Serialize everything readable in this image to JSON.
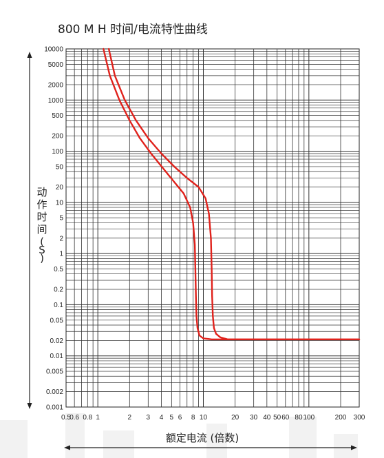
{
  "chart_data": {
    "type": "line",
    "title": "800 M H  时间/电流特性曲线",
    "xlabel": "额定电流 (倍数)",
    "ylabel": "动作时间 (S)",
    "x_scale": "log",
    "y_scale": "log",
    "xlim": [
      0.5,
      300
    ],
    "ylim": [
      0.001,
      10000
    ],
    "grid": true,
    "x_ticks": [
      {
        "value": 0.5,
        "label": "0.5"
      },
      {
        "value": 0.6,
        "label": "0.6"
      },
      {
        "value": 0.8,
        "label": "0.8"
      },
      {
        "value": 1,
        "label": "1"
      },
      {
        "value": 2,
        "label": "2"
      },
      {
        "value": 3,
        "label": "3"
      },
      {
        "value": 4,
        "label": "4"
      },
      {
        "value": 5,
        "label": "5"
      },
      {
        "value": 6,
        "label": "6"
      },
      {
        "value": 8,
        "label": "8"
      },
      {
        "value": 10,
        "label": "10"
      },
      {
        "value": 20,
        "label": "20"
      },
      {
        "value": 30,
        "label": "30"
      },
      {
        "value": 40,
        "label": "40"
      },
      {
        "value": 50,
        "label": "50"
      },
      {
        "value": 60,
        "label": "60"
      },
      {
        "value": 80,
        "label": "80"
      },
      {
        "value": 100,
        "label": "100"
      },
      {
        "value": 200,
        "label": "200"
      },
      {
        "value": 300,
        "label": "300"
      }
    ],
    "y_ticks": [
      {
        "value": 10000,
        "label": "10000"
      },
      {
        "value": 5000,
        "label": "5000"
      },
      {
        "value": 2000,
        "label": "2000"
      },
      {
        "value": 1000,
        "label": "1000"
      },
      {
        "value": 500,
        "label": "500"
      },
      {
        "value": 200,
        "label": "200"
      },
      {
        "value": 100,
        "label": "100"
      },
      {
        "value": 50,
        "label": "50"
      },
      {
        "value": 20,
        "label": "20"
      },
      {
        "value": 10,
        "label": "10"
      },
      {
        "value": 5,
        "label": "5"
      },
      {
        "value": 2,
        "label": "2"
      },
      {
        "value": 1,
        "label": "1"
      },
      {
        "value": 0.5,
        "label": "0.5"
      },
      {
        "value": 0.2,
        "label": "0.2"
      },
      {
        "value": 0.1,
        "label": "0.1"
      },
      {
        "value": 0.05,
        "label": "0.05"
      },
      {
        "value": 0.02,
        "label": "0.02"
      },
      {
        "value": 0.01,
        "label": "0.01"
      },
      {
        "value": 0.005,
        "label": "0.005"
      },
      {
        "value": 0.002,
        "label": "0.002"
      },
      {
        "value": 0.001,
        "label": "0.001"
      }
    ],
    "series": [
      {
        "color": "#e0221c",
        "x": [
          1.13,
          1.3,
          1.6,
          2.0,
          2.5,
          3.2,
          4.2,
          5.3,
          6.5,
          7.5,
          8.0,
          8.3,
          8.4,
          8.5,
          8.6,
          8.8,
          9.2,
          10,
          12,
          16,
          30,
          100,
          300
        ],
        "y": [
          10000,
          3000,
          1000,
          400,
          180,
          90,
          45,
          25,
          15,
          8,
          4,
          1.5,
          0.5,
          0.15,
          0.06,
          0.035,
          0.025,
          0.022,
          0.021,
          0.021,
          0.021,
          0.021,
          0.021
        ]
      },
      {
        "color": "#e0221c",
        "x": [
          1.27,
          1.45,
          1.8,
          2.3,
          3.0,
          4.0,
          5.3,
          7.0,
          9.0,
          10.5,
          11.3,
          11.8,
          12.0,
          12.1,
          12.3,
          12.6,
          13.2,
          14.5,
          17,
          20,
          30,
          100,
          300
        ],
        "y": [
          10000,
          3000,
          1000,
          400,
          180,
          90,
          50,
          30,
          20,
          12,
          6,
          2,
          0.5,
          0.15,
          0.06,
          0.035,
          0.027,
          0.023,
          0.021,
          0.021,
          0.021,
          0.021,
          0.021
        ]
      }
    ]
  }
}
